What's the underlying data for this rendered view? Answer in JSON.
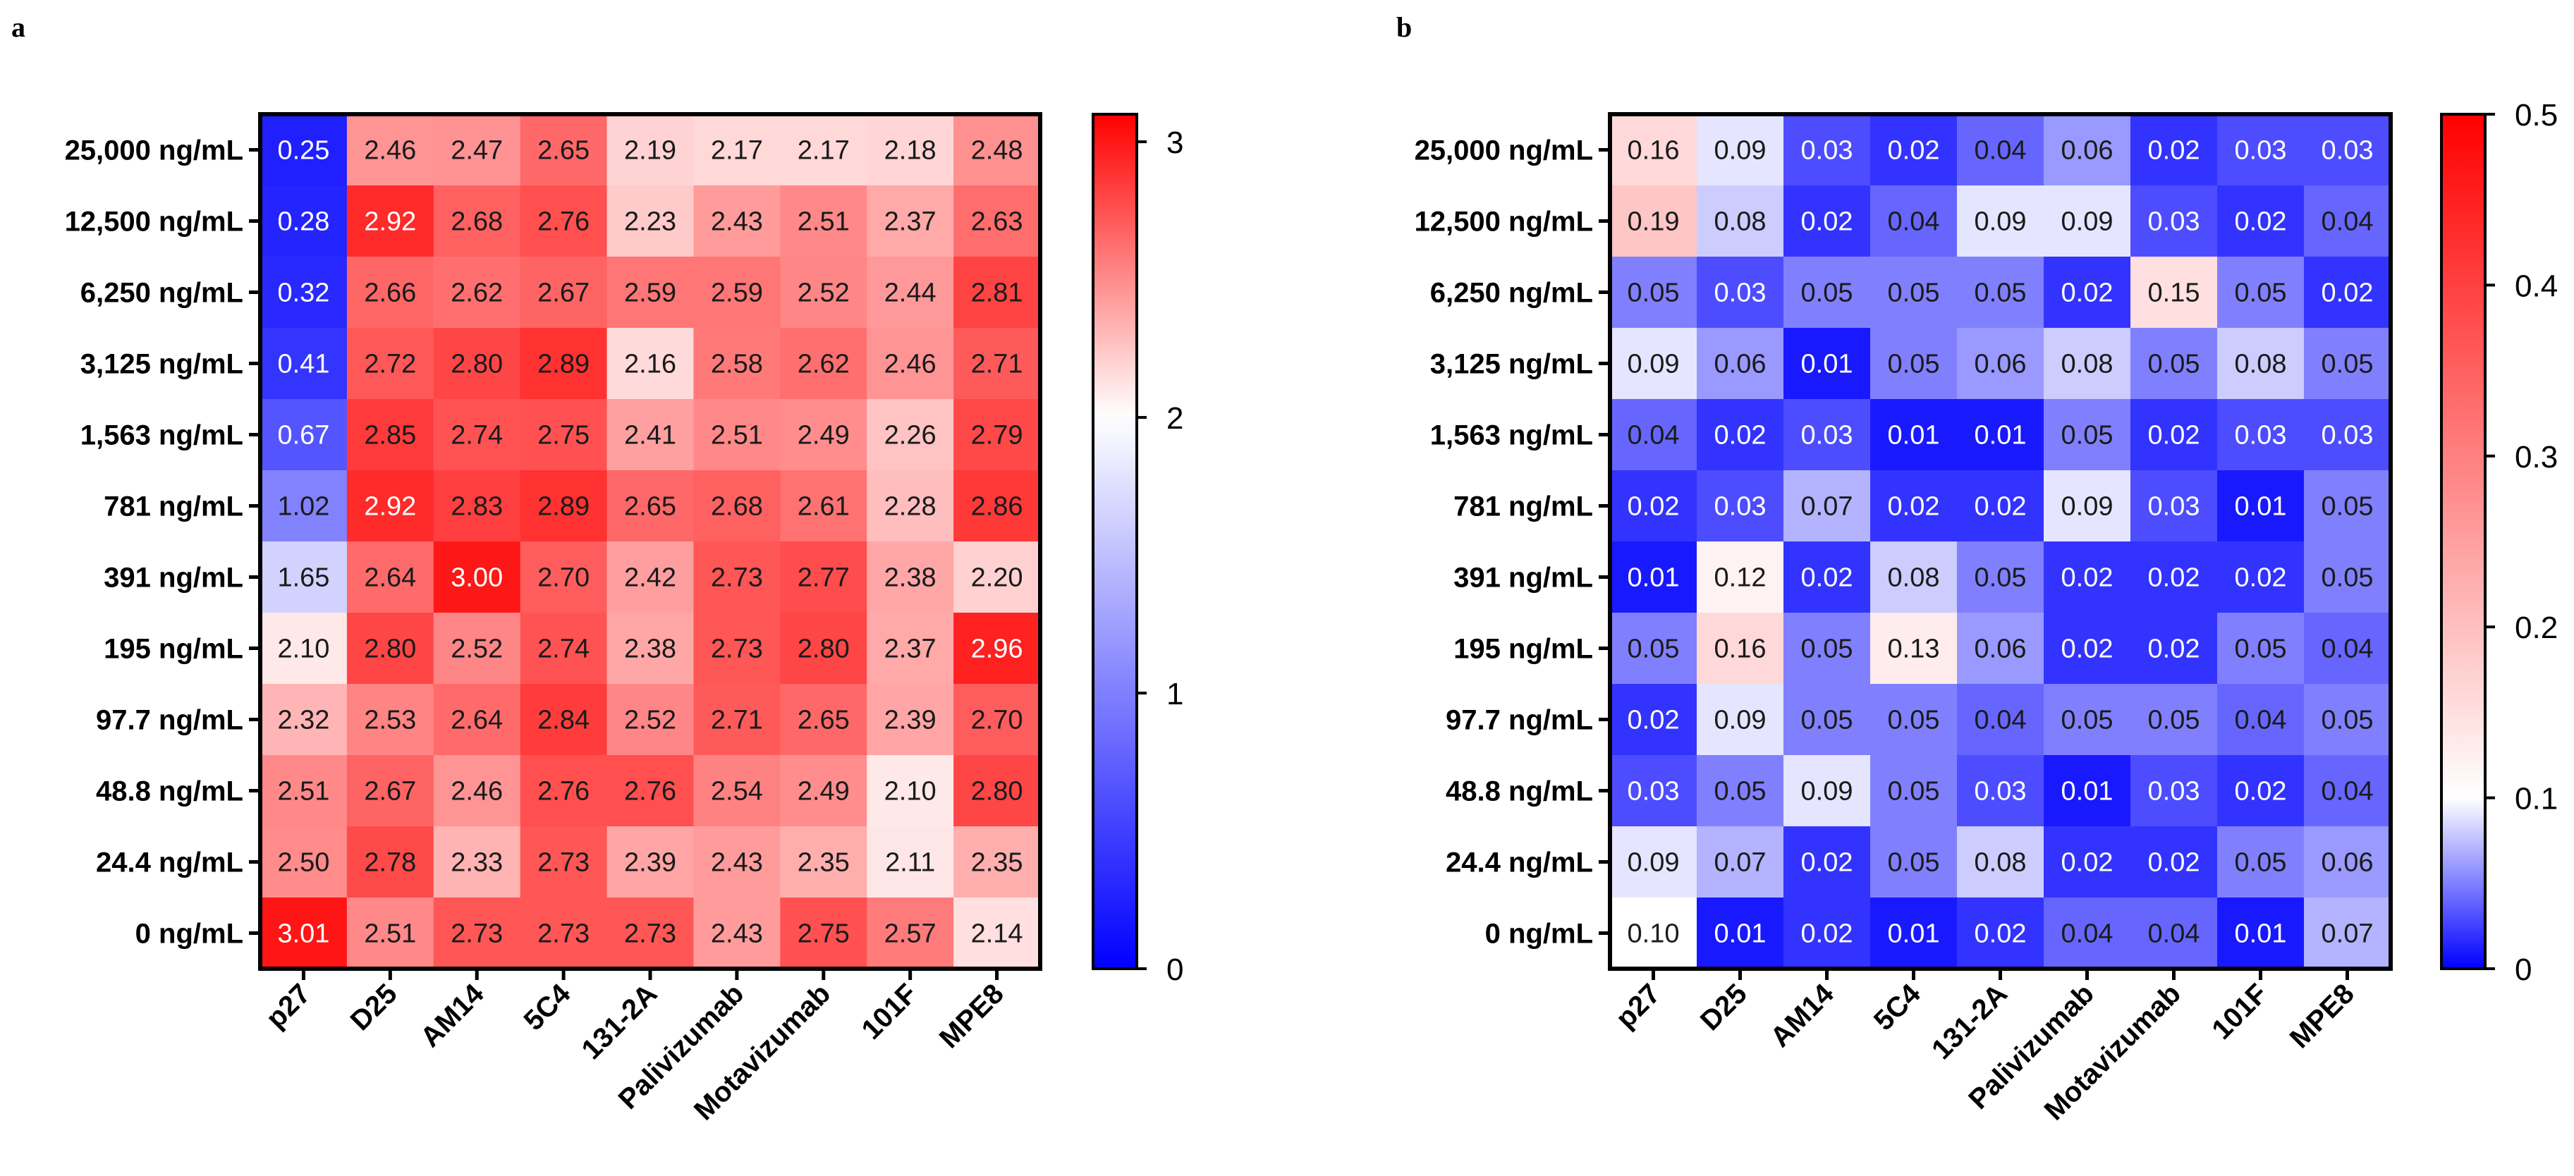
{
  "chart_data": [
    {
      "type": "heatmap",
      "panel": "a",
      "rows": [
        "25,000 ng/mL",
        "12,500 ng/mL",
        "6,250 ng/mL",
        "3,125 ng/mL",
        "1,563 ng/mL",
        "781 ng/mL",
        "391 ng/mL",
        "195 ng/mL",
        "97.7 ng/mL",
        "48.8 ng/mL",
        "24.4 ng/mL",
        "0 ng/mL"
      ],
      "columns": [
        "p27",
        "D25",
        "AM14",
        "5C4",
        "131-2A",
        "Palivizumab",
        "Motavizumab",
        "101F",
        "MPE8"
      ],
      "values": [
        [
          0.25,
          2.46,
          2.47,
          2.65,
          2.19,
          2.17,
          2.17,
          2.18,
          2.48
        ],
        [
          0.28,
          2.92,
          2.68,
          2.76,
          2.23,
          2.43,
          2.51,
          2.37,
          2.63
        ],
        [
          0.32,
          2.66,
          2.62,
          2.67,
          2.59,
          2.59,
          2.52,
          2.44,
          2.81
        ],
        [
          0.41,
          2.72,
          2.8,
          2.89,
          2.16,
          2.58,
          2.62,
          2.46,
          2.71
        ],
        [
          0.67,
          2.85,
          2.74,
          2.75,
          2.41,
          2.51,
          2.49,
          2.26,
          2.79
        ],
        [
          1.02,
          2.92,
          2.83,
          2.89,
          2.65,
          2.68,
          2.61,
          2.28,
          2.86
        ],
        [
          1.65,
          2.64,
          3.0,
          2.7,
          2.42,
          2.73,
          2.77,
          2.38,
          2.2
        ],
        [
          2.1,
          2.8,
          2.52,
          2.74,
          2.38,
          2.73,
          2.8,
          2.37,
          2.96
        ],
        [
          2.32,
          2.53,
          2.64,
          2.84,
          2.52,
          2.71,
          2.65,
          2.39,
          2.7
        ],
        [
          2.51,
          2.67,
          2.46,
          2.76,
          2.76,
          2.54,
          2.49,
          2.1,
          2.8
        ],
        [
          2.5,
          2.78,
          2.33,
          2.73,
          2.39,
          2.43,
          2.35,
          2.11,
          2.35
        ],
        [
          3.01,
          2.51,
          2.73,
          2.73,
          2.73,
          2.43,
          2.75,
          2.57,
          2.14
        ]
      ],
      "value_labels": [
        [
          "0.25",
          "2.46",
          "2.47",
          "2.65",
          "2.19",
          "2.17",
          "2.17",
          "2.18",
          "2.48"
        ],
        [
          "0.28",
          "2.92",
          "2.68",
          "2.76",
          "2.23",
          "2.43",
          "2.51",
          "2.37",
          "2.63"
        ],
        [
          "0.32",
          "2.66",
          "2.62",
          "2.67",
          "2.59",
          "2.59",
          "2.52",
          "2.44",
          "2.81"
        ],
        [
          "0.41",
          "2.72",
          "2.80",
          "2.89",
          "2.16",
          "2.58",
          "2.62",
          "2.46",
          "2.71"
        ],
        [
          "0.67",
          "2.85",
          "2.74",
          "2.75",
          "2.41",
          "2.51",
          "2.49",
          "2.26",
          "2.79"
        ],
        [
          "1.02",
          "2.92",
          "2.83",
          "2.89",
          "2.65",
          "2.68",
          "2.61",
          "2.28",
          "2.86"
        ],
        [
          "1.65",
          "2.64",
          "3.00",
          "2.70",
          "2.42",
          "2.73",
          "2.77",
          "2.38",
          "2.20"
        ],
        [
          "2.10",
          "2.80",
          "2.52",
          "2.74",
          "2.38",
          "2.73",
          "2.80",
          "2.37",
          "2.96"
        ],
        [
          "2.32",
          "2.53",
          "2.64",
          "2.84",
          "2.52",
          "2.71",
          "2.65",
          "2.39",
          "2.70"
        ],
        [
          "2.51",
          "2.67",
          "2.46",
          "2.76",
          "2.76",
          "2.54",
          "2.49",
          "2.10",
          "2.80"
        ],
        [
          "2.50",
          "2.78",
          "2.33",
          "2.73",
          "2.39",
          "2.43",
          "2.35",
          "2.11",
          "2.35"
        ],
        [
          "3.01",
          "2.51",
          "2.73",
          "2.73",
          "2.73",
          "2.43",
          "2.75",
          "2.57",
          "2.14"
        ]
      ],
      "colorbar": {
        "range": [
          0,
          3.1
        ],
        "midpoint": 2,
        "ticks": [
          0,
          1,
          2,
          3
        ],
        "tick_labels": [
          "0",
          "1",
          "2",
          "3"
        ],
        "low_color": "#0000ff",
        "mid_color": "#ffffff",
        "high_color": "#ff0000"
      }
    },
    {
      "type": "heatmap",
      "panel": "b",
      "rows": [
        "25,000 ng/mL",
        "12,500 ng/mL",
        "6,250 ng/mL",
        "3,125 ng/mL",
        "1,563 ng/mL",
        "781 ng/mL",
        "391 ng/mL",
        "195 ng/mL",
        "97.7 ng/mL",
        "48.8 ng/mL",
        "24.4 ng/mL",
        "0 ng/mL"
      ],
      "columns": [
        "p27",
        "D25",
        "AM14",
        "5C4",
        "131-2A",
        "Palivizumab",
        "Motavizumab",
        "101F",
        "MPE8"
      ],
      "values": [
        [
          0.16,
          0.09,
          0.03,
          0.02,
          0.04,
          0.06,
          0.02,
          0.03,
          0.03
        ],
        [
          0.19,
          0.08,
          0.02,
          0.04,
          0.09,
          0.09,
          0.03,
          0.02,
          0.04
        ],
        [
          0.05,
          0.03,
          0.05,
          0.05,
          0.05,
          0.02,
          0.15,
          0.05,
          0.02
        ],
        [
          0.09,
          0.06,
          0.01,
          0.05,
          0.06,
          0.08,
          0.05,
          0.08,
          0.05
        ],
        [
          0.04,
          0.02,
          0.03,
          0.01,
          0.01,
          0.05,
          0.02,
          0.03,
          0.03
        ],
        [
          0.02,
          0.03,
          0.07,
          0.02,
          0.02,
          0.09,
          0.03,
          0.01,
          0.05
        ],
        [
          0.01,
          0.12,
          0.02,
          0.08,
          0.05,
          0.02,
          0.02,
          0.02,
          0.05
        ],
        [
          0.05,
          0.16,
          0.05,
          0.13,
          0.06,
          0.02,
          0.02,
          0.05,
          0.04
        ],
        [
          0.02,
          0.09,
          0.05,
          0.05,
          0.04,
          0.05,
          0.05,
          0.04,
          0.05
        ],
        [
          0.03,
          0.05,
          0.09,
          0.05,
          0.03,
          0.01,
          0.03,
          0.02,
          0.04
        ],
        [
          0.09,
          0.07,
          0.02,
          0.05,
          0.08,
          0.02,
          0.02,
          0.05,
          0.06
        ],
        [
          0.1,
          0.01,
          0.02,
          0.01,
          0.02,
          0.04,
          0.04,
          0.01,
          0.07
        ]
      ],
      "value_labels": [
        [
          "0.16",
          "0.09",
          "0.03",
          "0.02",
          "0.04",
          "0.06",
          "0.02",
          "0.03",
          "0.03"
        ],
        [
          "0.19",
          "0.08",
          "0.02",
          "0.04",
          "0.09",
          "0.09",
          "0.03",
          "0.02",
          "0.04"
        ],
        [
          "0.05",
          "0.03",
          "0.05",
          "0.05",
          "0.05",
          "0.02",
          "0.15",
          "0.05",
          "0.02"
        ],
        [
          "0.09",
          "0.06",
          "0.01",
          "0.05",
          "0.06",
          "0.08",
          "0.05",
          "0.08",
          "0.05"
        ],
        [
          "0.04",
          "0.02",
          "0.03",
          "0.01",
          "0.01",
          "0.05",
          "0.02",
          "0.03",
          "0.03"
        ],
        [
          "0.02",
          "0.03",
          "0.07",
          "0.02",
          "0.02",
          "0.09",
          "0.03",
          "0.01",
          "0.05"
        ],
        [
          "0.01",
          "0.12",
          "0.02",
          "0.08",
          "0.05",
          "0.02",
          "0.02",
          "0.02",
          "0.05"
        ],
        [
          "0.05",
          "0.16",
          "0.05",
          "0.13",
          "0.06",
          "0.02",
          "0.02",
          "0.05",
          "0.04"
        ],
        [
          "0.02",
          "0.09",
          "0.05",
          "0.05",
          "0.04",
          "0.05",
          "0.05",
          "0.04",
          "0.05"
        ],
        [
          "0.03",
          "0.05",
          "0.09",
          "0.05",
          "0.03",
          "0.01",
          "0.03",
          "0.02",
          "0.04"
        ],
        [
          "0.09",
          "0.07",
          "0.02",
          "0.05",
          "0.08",
          "0.02",
          "0.02",
          "0.05",
          "0.06"
        ],
        [
          "0.10",
          "0.01",
          "0.02",
          "0.01",
          "0.02",
          "0.04",
          "0.04",
          "0.01",
          "0.07"
        ]
      ],
      "colorbar": {
        "range": [
          0,
          0.5
        ],
        "midpoint": 0.1,
        "ticks": [
          0,
          0.1,
          0.2,
          0.3,
          0.4,
          0.5
        ],
        "tick_labels": [
          "0",
          "0.1",
          "0.2",
          "0.3",
          "0.4",
          "0.5"
        ],
        "low_color": "#0000ff",
        "mid_color": "#ffffff",
        "high_color": "#ff0000"
      }
    }
  ]
}
